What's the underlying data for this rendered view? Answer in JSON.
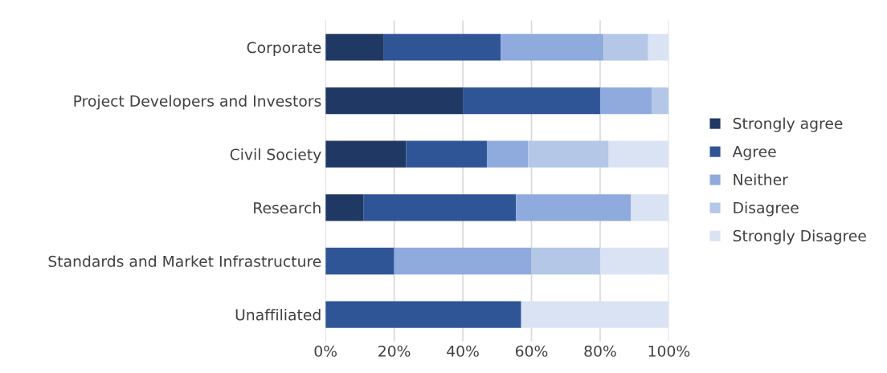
{
  "chart_data": {
    "type": "bar",
    "orientation": "horizontal",
    "stacked": true,
    "categories": [
      "Corporate",
      "Project Developers and Investors",
      "Civil Society",
      "Research",
      "Standards and Market Infrastructure",
      "Unaffiliated"
    ],
    "series": [
      {
        "name": "Strongly agree",
        "color": "#203864",
        "values": [
          17,
          40,
          23.5,
          11,
          0,
          0
        ]
      },
      {
        "name": "Agree",
        "color": "#2f5597",
        "values": [
          34,
          40,
          23.5,
          44.5,
          20,
          57
        ]
      },
      {
        "name": "Neither",
        "color": "#8faadc",
        "values": [
          30,
          15,
          12,
          33.5,
          40,
          0
        ]
      },
      {
        "name": "Disagree",
        "color": "#b4c7e7",
        "values": [
          13,
          5,
          23.5,
          0,
          20,
          0
        ]
      },
      {
        "name": "Strongly Disagree",
        "color": "#dae3f3",
        "values": [
          6,
          0,
          17.5,
          11,
          20,
          43
        ]
      }
    ],
    "xlim": [
      0,
      100
    ],
    "xticks": [
      {
        "value": 0,
        "label": "0%"
      },
      {
        "value": 20,
        "label": "20%"
      },
      {
        "value": 40,
        "label": "40%"
      },
      {
        "value": 60,
        "label": "60%"
      },
      {
        "value": 80,
        "label": "80%"
      },
      {
        "value": 100,
        "label": "100%"
      }
    ],
    "grid": "x",
    "legend": "right"
  }
}
